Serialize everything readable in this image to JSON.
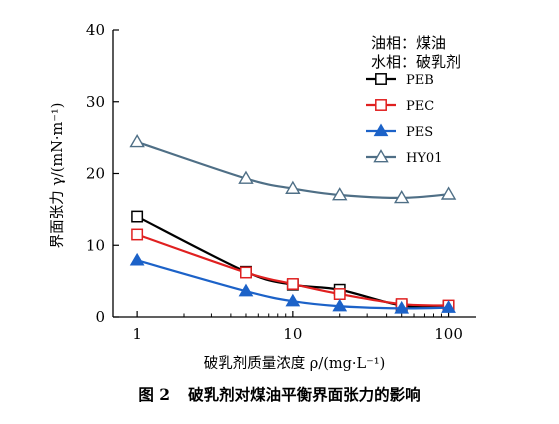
{
  "chart_data": {
    "type": "line",
    "x_scale": "log",
    "xlim": [
      0.7,
      150
    ],
    "ylim": [
      0,
      40
    ],
    "x_ticks": [
      1,
      10,
      100
    ],
    "x_tick_labels": [
      "1",
      "10",
      "100"
    ],
    "y_ticks": [
      0,
      10,
      20,
      30,
      40
    ],
    "y_tick_labels": [
      "0",
      "10",
      "20",
      "30",
      "40"
    ],
    "xlabel": "破乳剂质量浓度 ρ/(mg·L⁻¹)",
    "ylabel": "界面张力 γ/(mN·m⁻¹)",
    "notes": [
      "油相：煤油",
      "水相：破乳剂"
    ],
    "legend_position": "top-right",
    "grid": false,
    "series": [
      {
        "name": "PEB",
        "color": "#000000",
        "marker": "square-open",
        "x": [
          1,
          5,
          10,
          20,
          50,
          100
        ],
        "y": [
          14.0,
          6.3,
          4.5,
          3.8,
          1.6,
          1.5
        ]
      },
      {
        "name": "PEC",
        "color": "#e02020",
        "marker": "square-open",
        "x": [
          1,
          5,
          10,
          20,
          50,
          100
        ],
        "y": [
          11.5,
          6.2,
          4.6,
          3.2,
          1.8,
          1.6
        ]
      },
      {
        "name": "PES",
        "color": "#1c62c8",
        "marker": "triangle-filled",
        "x": [
          1,
          5,
          10,
          20,
          50,
          100
        ],
        "y": [
          7.9,
          3.6,
          2.2,
          1.5,
          1.2,
          1.3
        ]
      },
      {
        "name": "HY01",
        "color": "#4f6f86",
        "marker": "triangle-open",
        "x": [
          1,
          5,
          10,
          20,
          50,
          100
        ],
        "y": [
          24.4,
          19.3,
          17.9,
          17.0,
          16.6,
          17.1
        ]
      }
    ]
  },
  "caption": {
    "label": "图 2",
    "text": "破乳剂对煤油平衡界面张力的影响"
  }
}
